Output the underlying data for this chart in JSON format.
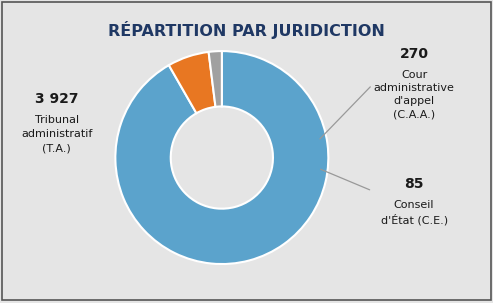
{
  "title": "RÉPARTITION PAR JURIDICTION",
  "values": [
    3927,
    270,
    85
  ],
  "labels": [
    "T.A.",
    "C.A.A.",
    "C.E."
  ],
  "colors": [
    "#5BA3CC",
    "#E87722",
    "#A0A0A0"
  ],
  "background_color": "#E5E5E5",
  "border_color": "#555555",
  "ta_value": "3 927",
  "ta_line1": "Tribunal",
  "ta_line2": "administratif",
  "ta_line3": "(T.A.)",
  "caa_value": "270",
  "caa_line1": "Cour",
  "caa_line2": "administrative",
  "caa_line3": "d'appel",
  "caa_line4": "(C.A.A.)",
  "ce_value": "85",
  "ce_line1": "Conseil",
  "ce_line2": "d'État (C.E.)",
  "donut_width": 0.52,
  "title_color": "#1F3864",
  "title_fontsize": 11.5,
  "label_fontsize": 8,
  "value_fontsize": 10,
  "startangle": 90
}
